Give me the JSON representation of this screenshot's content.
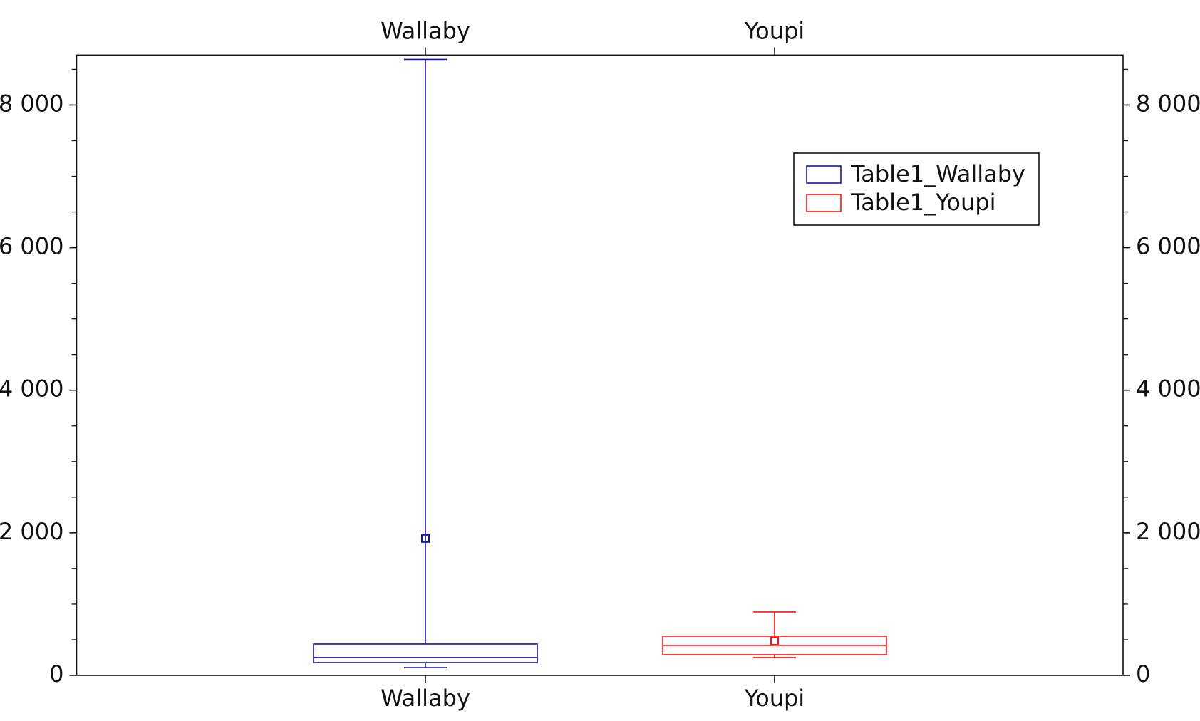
{
  "chart_data": {
    "type": "box",
    "categories": [
      "Wallaby",
      "Youpi"
    ],
    "series": [
      {
        "name": "Table1_Wallaby",
        "color": "#1414a8",
        "min": 110,
        "q1": 180,
        "median": 250,
        "q3": 440,
        "max": 8640,
        "mean": 1920
      },
      {
        "name": "Table1_Youpi",
        "color": "#ff1010",
        "min": 250,
        "q1": 290,
        "median": 420,
        "q3": 550,
        "max": 890,
        "mean": 480
      }
    ],
    "ylim": [
      0,
      8700
    ],
    "yticks": [
      0,
      {
        "value": 2000,
        "label": "2 000"
      },
      {
        "value": 4000,
        "label": "4 000"
      },
      {
        "value": 6000,
        "label": "6 000"
      },
      {
        "value": 8000,
        "label": "8 000"
      }
    ],
    "yminorticks": [
      500,
      1000,
      1500,
      2500,
      3000,
      3500,
      4500,
      5000,
      5500,
      6500,
      7000,
      7500,
      8500
    ],
    "legend": "upper-right"
  }
}
